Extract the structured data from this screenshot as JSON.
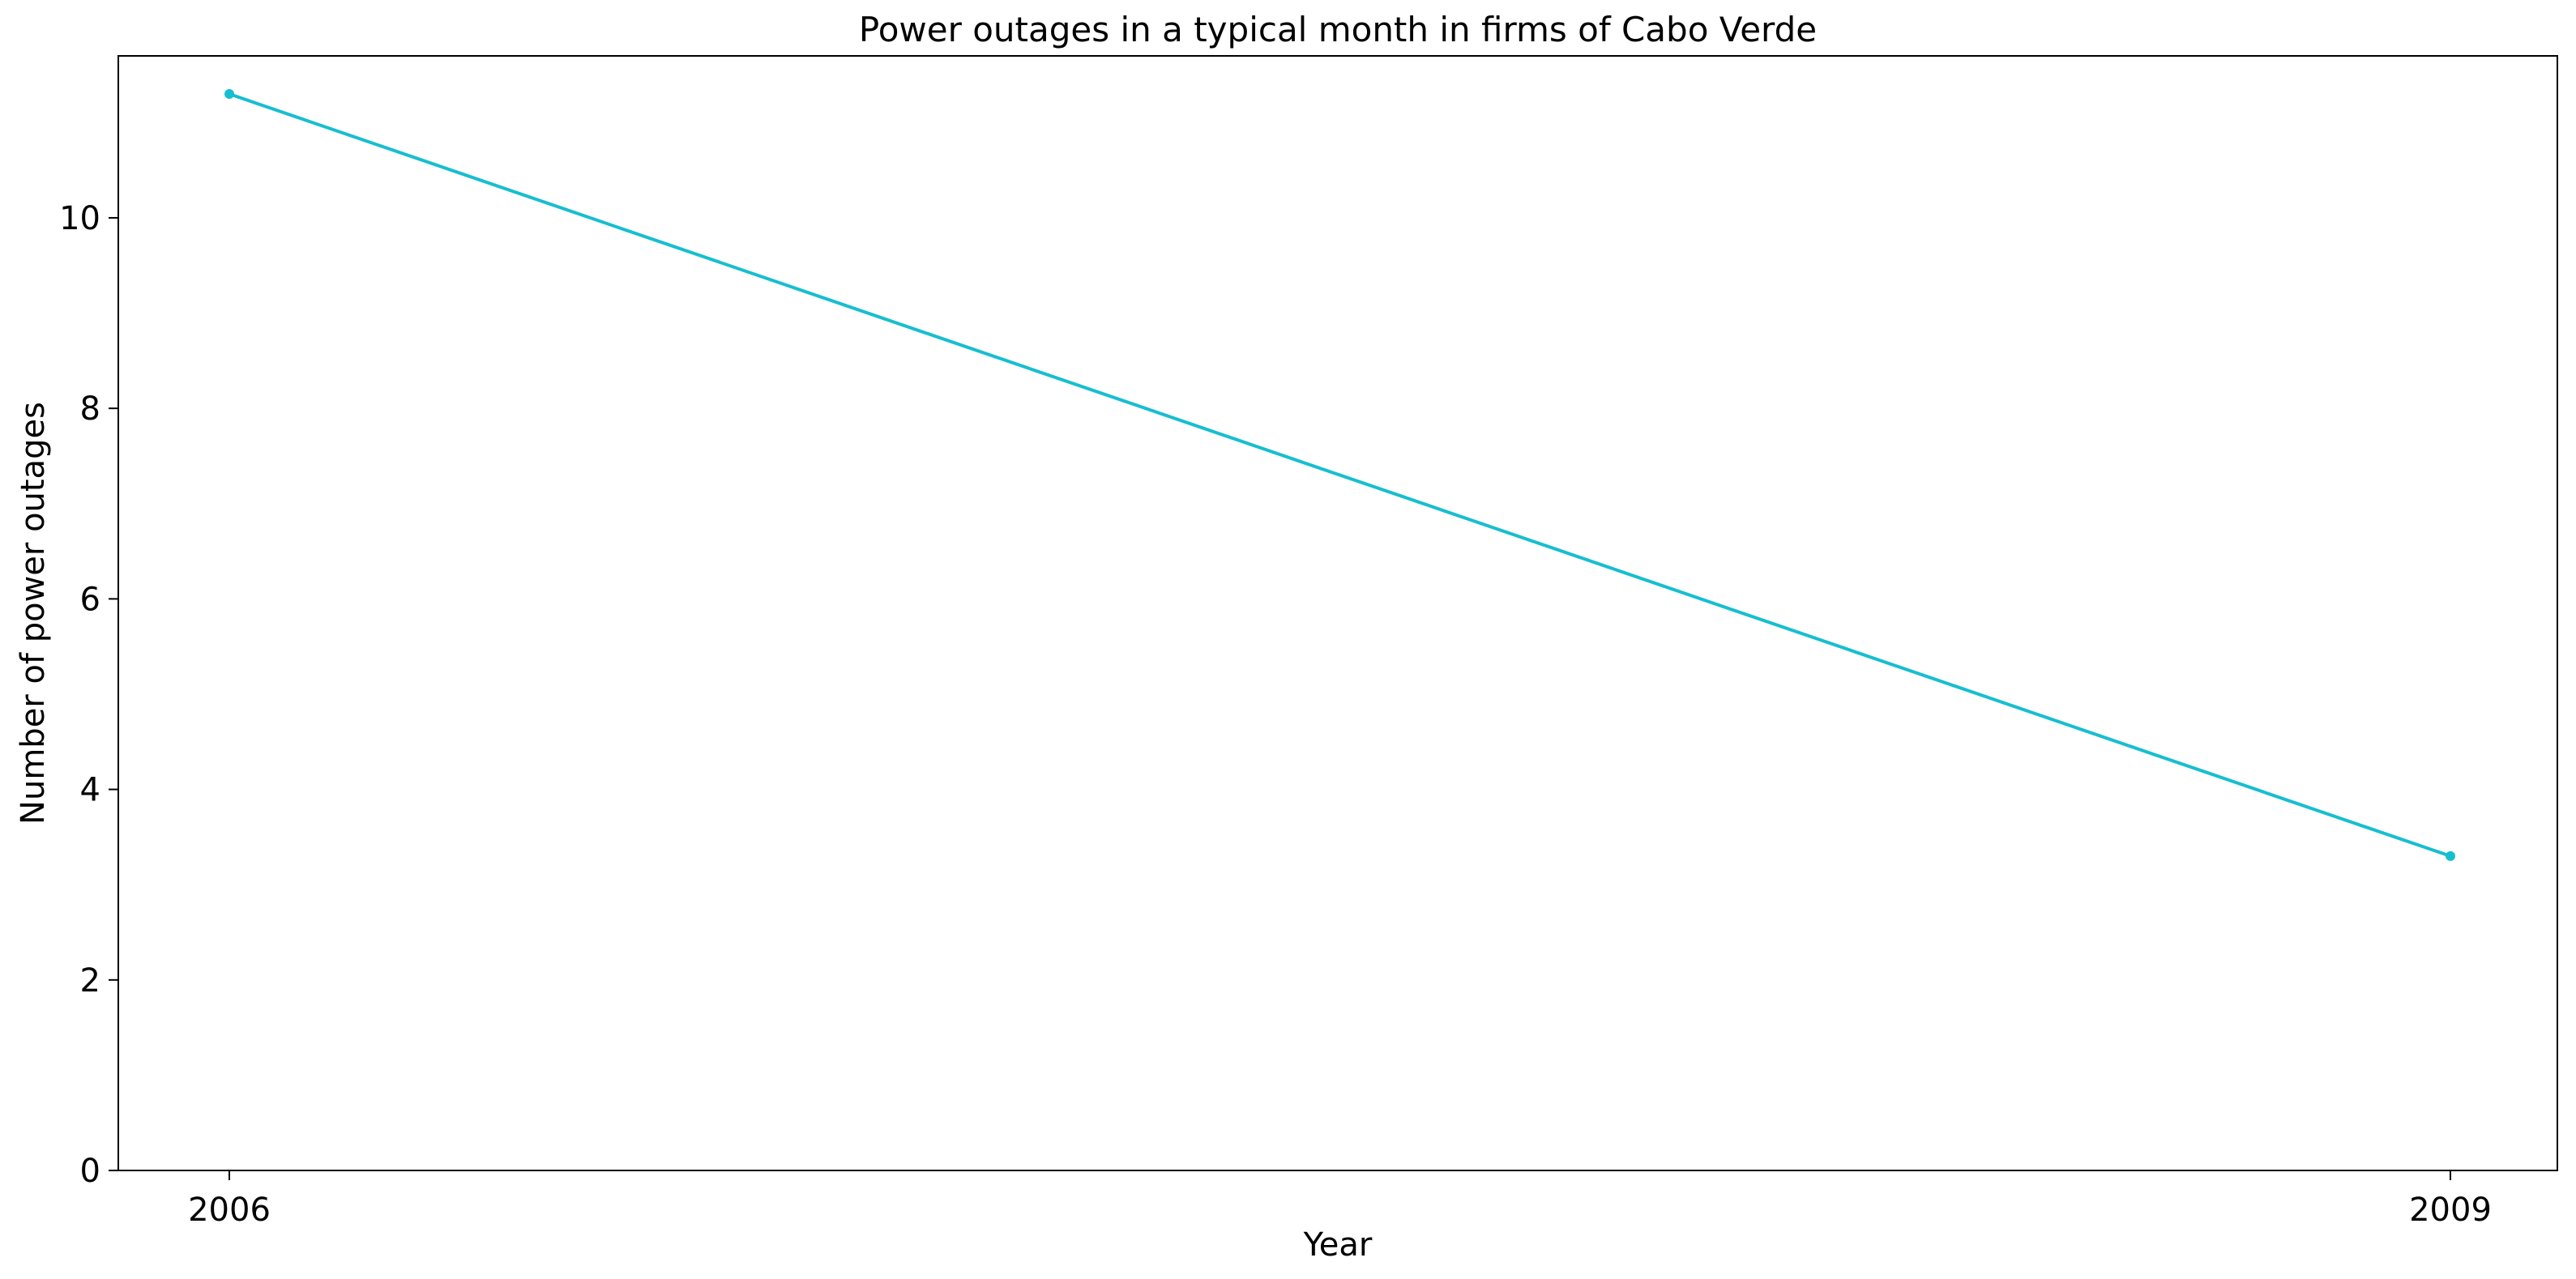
{
  "chart_data": {
    "type": "line",
    "title": "Power outages in a typical month in firms of Cabo Verde",
    "xlabel": "Year",
    "ylabel": "Number of power outages",
    "x": [
      "2006",
      "2009"
    ],
    "series": [
      {
        "values": [
          11.3,
          3.3
        ],
        "color": "#17becf"
      }
    ],
    "ylim": [
      0,
      11.7
    ],
    "yticks": [
      0,
      2,
      4,
      6,
      8,
      10
    ],
    "grid": false,
    "legend": "none"
  }
}
